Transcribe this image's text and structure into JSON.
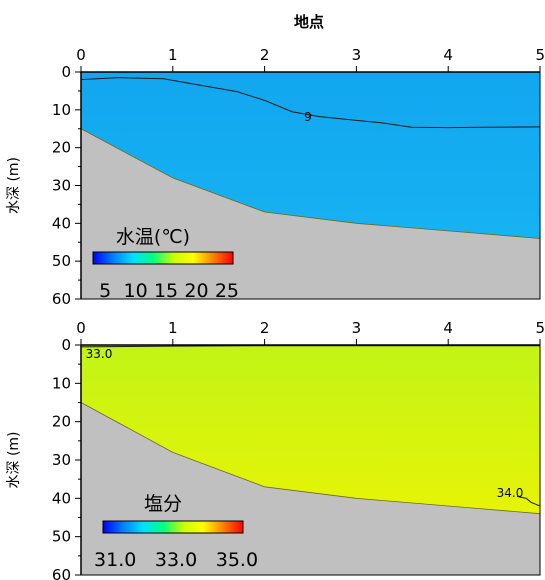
{
  "chart_data": [
    {
      "type": "heatmap",
      "title": "",
      "xlabel": "地点",
      "ylabel": "水深 (m)",
      "xticks": [
        "0",
        "1",
        "2",
        "3",
        "4",
        "5"
      ],
      "yticks": [
        "0",
        "10",
        "20",
        "30",
        "40",
        "50",
        "60"
      ],
      "xlim": [
        0,
        5
      ],
      "ylim": [
        60,
        0
      ],
      "colorbar": {
        "title": "水温(℃)",
        "range": [
          3,
          26
        ],
        "ticks": [
          "5",
          "10",
          "15",
          "20",
          "25"
        ],
        "colormap": [
          "#0000ff",
          "#0080ff",
          "#00e0ff",
          "#00ff80",
          "#c8ff00",
          "#ffff00",
          "#ff8000",
          "#ff0000"
        ]
      },
      "field_colors": {
        "surface": "#12a6ef",
        "deep": "#18b7f3",
        "bottom": "#c0c0c0"
      },
      "seafloor": {
        "x": [
          0,
          1,
          2,
          3,
          4,
          5
        ],
        "depth": [
          15,
          28,
          37,
          40,
          42,
          44
        ]
      },
      "contours": [
        {
          "value": 9,
          "label": "9",
          "x": [
            0,
            0.4,
            0.9,
            1.3,
            1.7,
            2.0,
            2.3,
            2.6,
            3.0,
            3.3,
            3.6,
            4.0,
            4.4,
            5.0
          ],
          "depth": [
            2,
            1.5,
            1.8,
            3.5,
            5.2,
            7.5,
            10.5,
            11.8,
            12.8,
            13.5,
            14.6,
            14.7,
            14.6,
            14.5
          ]
        }
      ]
    },
    {
      "type": "heatmap",
      "title": "",
      "xlabel": "",
      "ylabel": "水深 (m)",
      "xticks": [
        "0",
        "1",
        "2",
        "3",
        "4",
        "5"
      ],
      "yticks": [
        "0",
        "10",
        "20",
        "30",
        "40",
        "50",
        "60"
      ],
      "xlim": [
        0,
        5
      ],
      "ylim": [
        60,
        0
      ],
      "colorbar": {
        "title": "塩分",
        "range": [
          30.6,
          35.2
        ],
        "ticks": [
          "31.0",
          "33.0",
          "35.0"
        ],
        "colormap": [
          "#0000ff",
          "#0080ff",
          "#00e0ff",
          "#00ff80",
          "#c8ff00",
          "#ffff00",
          "#ff8000",
          "#ff0000"
        ]
      },
      "field_colors": {
        "surface": "#c2f416",
        "deep": "#f4f400",
        "bottom": "#c0c0c0"
      },
      "seafloor": {
        "x": [
          0,
          1,
          2,
          3,
          4,
          5
        ],
        "depth": [
          15,
          28,
          37,
          40,
          42,
          44
        ]
      },
      "contours": [
        {
          "value": 33.0,
          "label": "33.0",
          "x": [
            0,
            1,
            2,
            3,
            4,
            5
          ],
          "depth": [
            0.5,
            0.3,
            0.2,
            0.2,
            0.2,
            0.2
          ]
        },
        {
          "value": 34.0,
          "label": "34.0",
          "x": [
            4.75,
            4.85,
            4.9,
            5.0
          ],
          "depth": [
            39.5,
            40.0,
            41.0,
            42.0
          ]
        }
      ]
    }
  ]
}
